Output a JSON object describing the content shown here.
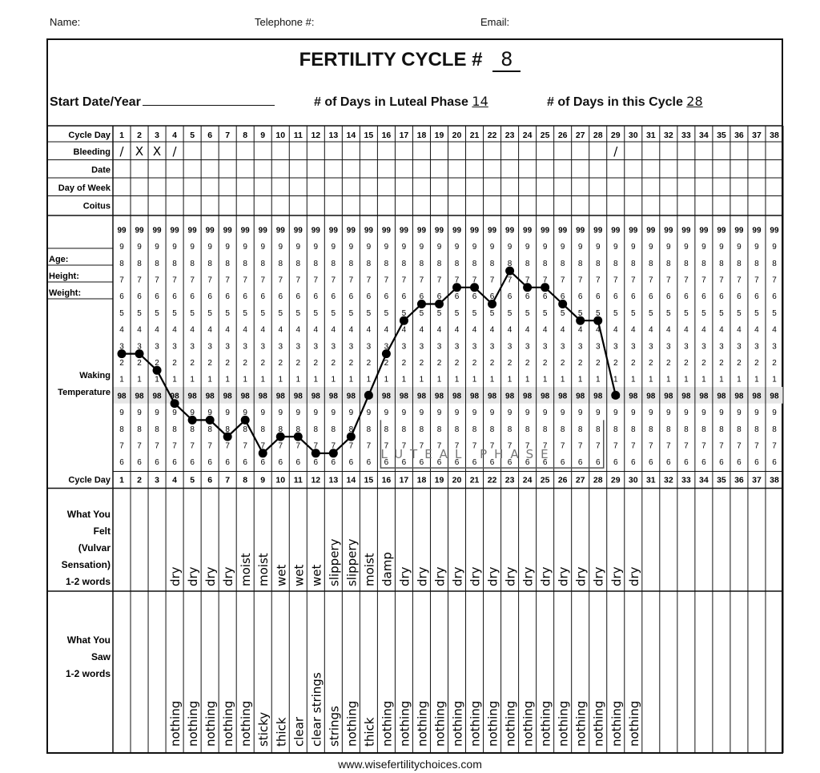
{
  "header": {
    "name_label": "Name:",
    "telephone_label": "Telephone #:",
    "email_label": "Email:"
  },
  "title": {
    "text": "FERTILITY CYCLE #",
    "cycle_number": "8"
  },
  "info": {
    "start_date_label": "Start Date/Year",
    "luteal_label": "# of Days in Luteal Phase",
    "luteal_value": "14",
    "cycle_length_label": "# of Days in this Cycle",
    "cycle_length_value": "28"
  },
  "row_labels": {
    "cycle_day": "Cycle Day",
    "bleeding": "Bleeding",
    "date": "Date",
    "day_of_week": "Day of Week",
    "coitus": "Coitus",
    "age": "Age:",
    "height": "Height:",
    "weight": "Weight:",
    "waking": "Waking",
    "temperature": "Temperature"
  },
  "section_labels": {
    "felt": [
      "What You",
      "Felt",
      "(Vulvar",
      "Sensation)",
      "1-2 words"
    ],
    "saw": [
      "What You",
      "Saw",
      "1-2 words"
    ]
  },
  "temperature_scale": [
    "99",
    "9",
    "8",
    "7",
    "6",
    "5",
    "4",
    "3",
    "2",
    "1",
    "98",
    "9",
    "8",
    "7",
    "6"
  ],
  "bleeding": [
    "/",
    "X",
    "X",
    "/",
    "",
    "",
    "",
    "",
    "",
    "",
    "",
    "",
    "",
    "",
    "",
    "",
    "",
    "",
    "",
    "",
    "",
    "",
    "",
    "",
    "",
    "",
    "",
    "",
    "/",
    "",
    "",
    "",
    "",
    "",
    "",
    "",
    "",
    ""
  ],
  "luteal_phase_label": "LUTEAL PHASE",
  "felt": [
    "dry",
    "dry",
    "dry",
    "dry",
    "moist",
    "moist",
    "wet",
    "wet",
    "wet",
    "slippery",
    "slippery",
    "moist",
    "damp",
    "dry",
    "dry",
    "dry",
    "dry",
    "dry",
    "dry",
    "dry",
    "dry",
    "dry",
    "dry",
    "dry",
    "dry",
    "dry",
    "dry"
  ],
  "saw": [
    "nothing",
    "nothing",
    "nothing",
    "nothing",
    "nothing",
    "sticky",
    "thick",
    "clear",
    "clear strings",
    "strings",
    "nothing",
    "thick",
    "nothing",
    "nothing",
    "nothing",
    "nothing",
    "nothing",
    "nothing",
    "nothing",
    "nothing",
    "nothing",
    "nothing",
    "nothing",
    "nothing",
    "nothing",
    "nothing",
    "nothing"
  ],
  "footer": {
    "url": "www.wisefertilitychoices.com"
  },
  "chart_data": {
    "type": "line",
    "x": [
      1,
      2,
      3,
      4,
      5,
      6,
      7,
      8,
      9,
      10,
      11,
      12,
      13,
      14,
      15,
      16,
      17,
      18,
      19,
      20,
      21,
      22,
      23,
      24,
      25,
      26,
      27,
      28,
      29
    ],
    "series": [
      {
        "values": [
          98.25,
          98.25,
          98.15,
          97.95,
          97.85,
          97.85,
          97.75,
          97.85,
          97.65,
          97.75,
          97.75,
          97.65,
          97.65,
          97.75,
          98.0,
          98.25,
          98.45,
          98.55,
          98.55,
          98.65,
          98.65,
          98.55,
          98.75,
          98.65,
          98.65,
          98.55,
          98.45,
          98.45,
          98.0
        ]
      }
    ],
    "xlabel": "Cycle Day",
    "ylabel": "Waking Temperature",
    "x_range": [
      1,
      38
    ],
    "ylim": [
      97.6,
      99.0
    ]
  }
}
